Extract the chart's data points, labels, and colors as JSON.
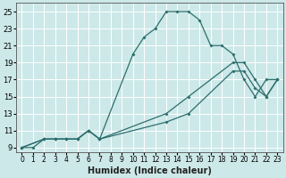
{
  "xlabel": "Humidex (Indice chaleur)",
  "xlim": [
    -0.5,
    23.5
  ],
  "ylim": [
    8.5,
    26
  ],
  "yticks": [
    9,
    11,
    13,
    15,
    17,
    19,
    21,
    23,
    25
  ],
  "xticks": [
    0,
    1,
    2,
    3,
    4,
    5,
    6,
    7,
    8,
    9,
    10,
    11,
    12,
    13,
    14,
    15,
    16,
    17,
    18,
    19,
    20,
    21,
    22,
    23
  ],
  "bg_color": "#cde8e8",
  "line_color": "#2d6e6e",
  "grid_color": "#ffffff",
  "lines": [
    {
      "x": [
        0,
        1,
        2,
        3,
        4,
        5,
        6,
        7,
        10,
        11,
        12,
        13,
        14,
        15,
        16,
        17,
        18,
        19,
        20,
        21,
        22,
        23
      ],
      "y": [
        9,
        9,
        10,
        10,
        10,
        10,
        11,
        10,
        20,
        22,
        23,
        25,
        25,
        25,
        24,
        21,
        21,
        20,
        17,
        15,
        17,
        17
      ]
    },
    {
      "x": [
        0,
        2,
        3,
        4,
        5,
        6,
        7,
        13,
        15,
        19,
        20,
        21,
        22,
        23
      ],
      "y": [
        9,
        10,
        10,
        10,
        10,
        11,
        10,
        13,
        15,
        19,
        19,
        17,
        15,
        17
      ]
    },
    {
      "x": [
        0,
        2,
        3,
        4,
        5,
        6,
        7,
        13,
        15,
        19,
        20,
        21,
        22,
        23
      ],
      "y": [
        9,
        10,
        10,
        10,
        10,
        11,
        10,
        12,
        13,
        18,
        18,
        16,
        15,
        17
      ]
    }
  ],
  "xlabel_fontsize": 7,
  "xlabel_bold": true,
  "tick_fontsize": 5.5,
  "ytick_fontsize": 6,
  "marker": "D",
  "markersize": 2.0,
  "linewidth": 0.9
}
